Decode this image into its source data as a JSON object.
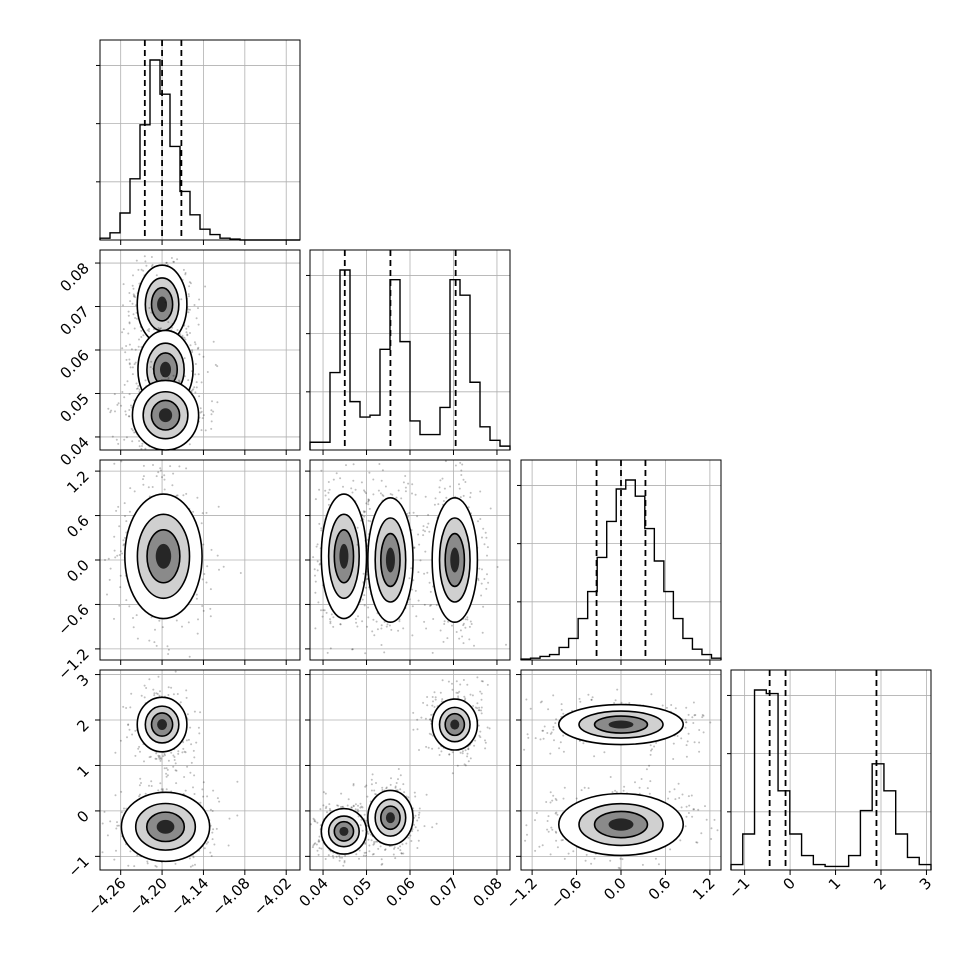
{
  "chart_data": {
    "type": "corner",
    "title": "",
    "parameters": [
      {
        "range": [
          -4.29,
          -4.0
        ],
        "ticks": [
          -4.26,
          -4.2,
          -4.14,
          -4.08,
          -4.02
        ],
        "tick_labels": [
          "−4.26",
          "−4.20",
          "−4.14",
          "−4.08",
          "−4.02"
        ],
        "quantiles": [
          -4.225,
          -4.2,
          -4.172
        ],
        "histogram": [
          1,
          4,
          15,
          34,
          64,
          100,
          81,
          52,
          27,
          14,
          6,
          3,
          1,
          0.5,
          0,
          0,
          0,
          0,
          0,
          0
        ]
      },
      {
        "range": [
          0.037,
          0.083
        ],
        "ticks": [
          0.04,
          0.05,
          0.06,
          0.07,
          0.08
        ],
        "tick_labels": [
          "0.04",
          "0.05",
          "0.06",
          "0.07",
          "0.08"
        ],
        "quantiles": [
          0.045,
          0.0555,
          0.0705
        ],
        "histogram": [
          4,
          4,
          40,
          93,
          25,
          17,
          18,
          52,
          88,
          56,
          15,
          8,
          8,
          22,
          88,
          80,
          35,
          12,
          5,
          2
        ]
      },
      {
        "range": [
          -1.35,
          1.35
        ],
        "ticks": [
          -1.2,
          -0.6,
          0.0,
          0.6,
          1.2
        ],
        "tick_labels": [
          "−1.2",
          "−0.6",
          "0.0",
          "0.6",
          "1.2"
        ],
        "quantiles": [
          -0.33,
          0.0,
          0.33
        ],
        "histogram": [
          0.5,
          1,
          2,
          3,
          7,
          12,
          23,
          38,
          57,
          77,
          95,
          100,
          91,
          73,
          55,
          38,
          23,
          12,
          6,
          3,
          1
        ]
      },
      {
        "range": [
          -1.3,
          3.1
        ],
        "ticks": [
          -1,
          0,
          1,
          2,
          3
        ],
        "tick_labels": [
          "−1",
          "0",
          "1",
          "2",
          "3"
        ],
        "quantiles": [
          -0.45,
          -0.1,
          1.9
        ],
        "histogram": [
          3,
          20,
          100,
          98,
          44,
          20,
          8,
          3,
          2,
          2,
          8,
          33,
          59,
          44,
          20,
          7,
          3
        ]
      }
    ],
    "pairs": [
      {
        "x": 0,
        "y": 1,
        "blobs": [
          [
            -4.2,
            0.0705,
            0.018,
            0.0045
          ],
          [
            -4.195,
            0.0555,
            0.02,
            0.0045
          ],
          [
            -4.195,
            0.045,
            0.024,
            0.004
          ]
        ]
      },
      {
        "x": 0,
        "y": 2,
        "blobs": [
          [
            -4.198,
            0.05,
            0.028,
            0.42
          ]
        ]
      },
      {
        "x": 1,
        "y": 2,
        "blobs": [
          [
            0.0448,
            0.05,
            0.0026,
            0.42
          ],
          [
            0.0555,
            0.0,
            0.0026,
            0.42
          ],
          [
            0.0703,
            0.0,
            0.0026,
            0.42
          ]
        ]
      },
      {
        "x": 0,
        "y": 3,
        "blobs": [
          [
            -4.2,
            1.9,
            0.018,
            0.3
          ],
          [
            -4.195,
            -0.35,
            0.032,
            0.38
          ]
        ]
      },
      {
        "x": 1,
        "y": 3,
        "blobs": [
          [
            0.0448,
            -0.45,
            0.0026,
            0.25
          ],
          [
            0.0555,
            -0.15,
            0.0026,
            0.3
          ],
          [
            0.0703,
            1.9,
            0.0026,
            0.28
          ]
        ]
      },
      {
        "x": 2,
        "y": 3,
        "blobs": [
          [
            0.0,
            1.9,
            0.42,
            0.22
          ],
          [
            0.0,
            -0.3,
            0.42,
            0.34
          ]
        ]
      }
    ]
  }
}
